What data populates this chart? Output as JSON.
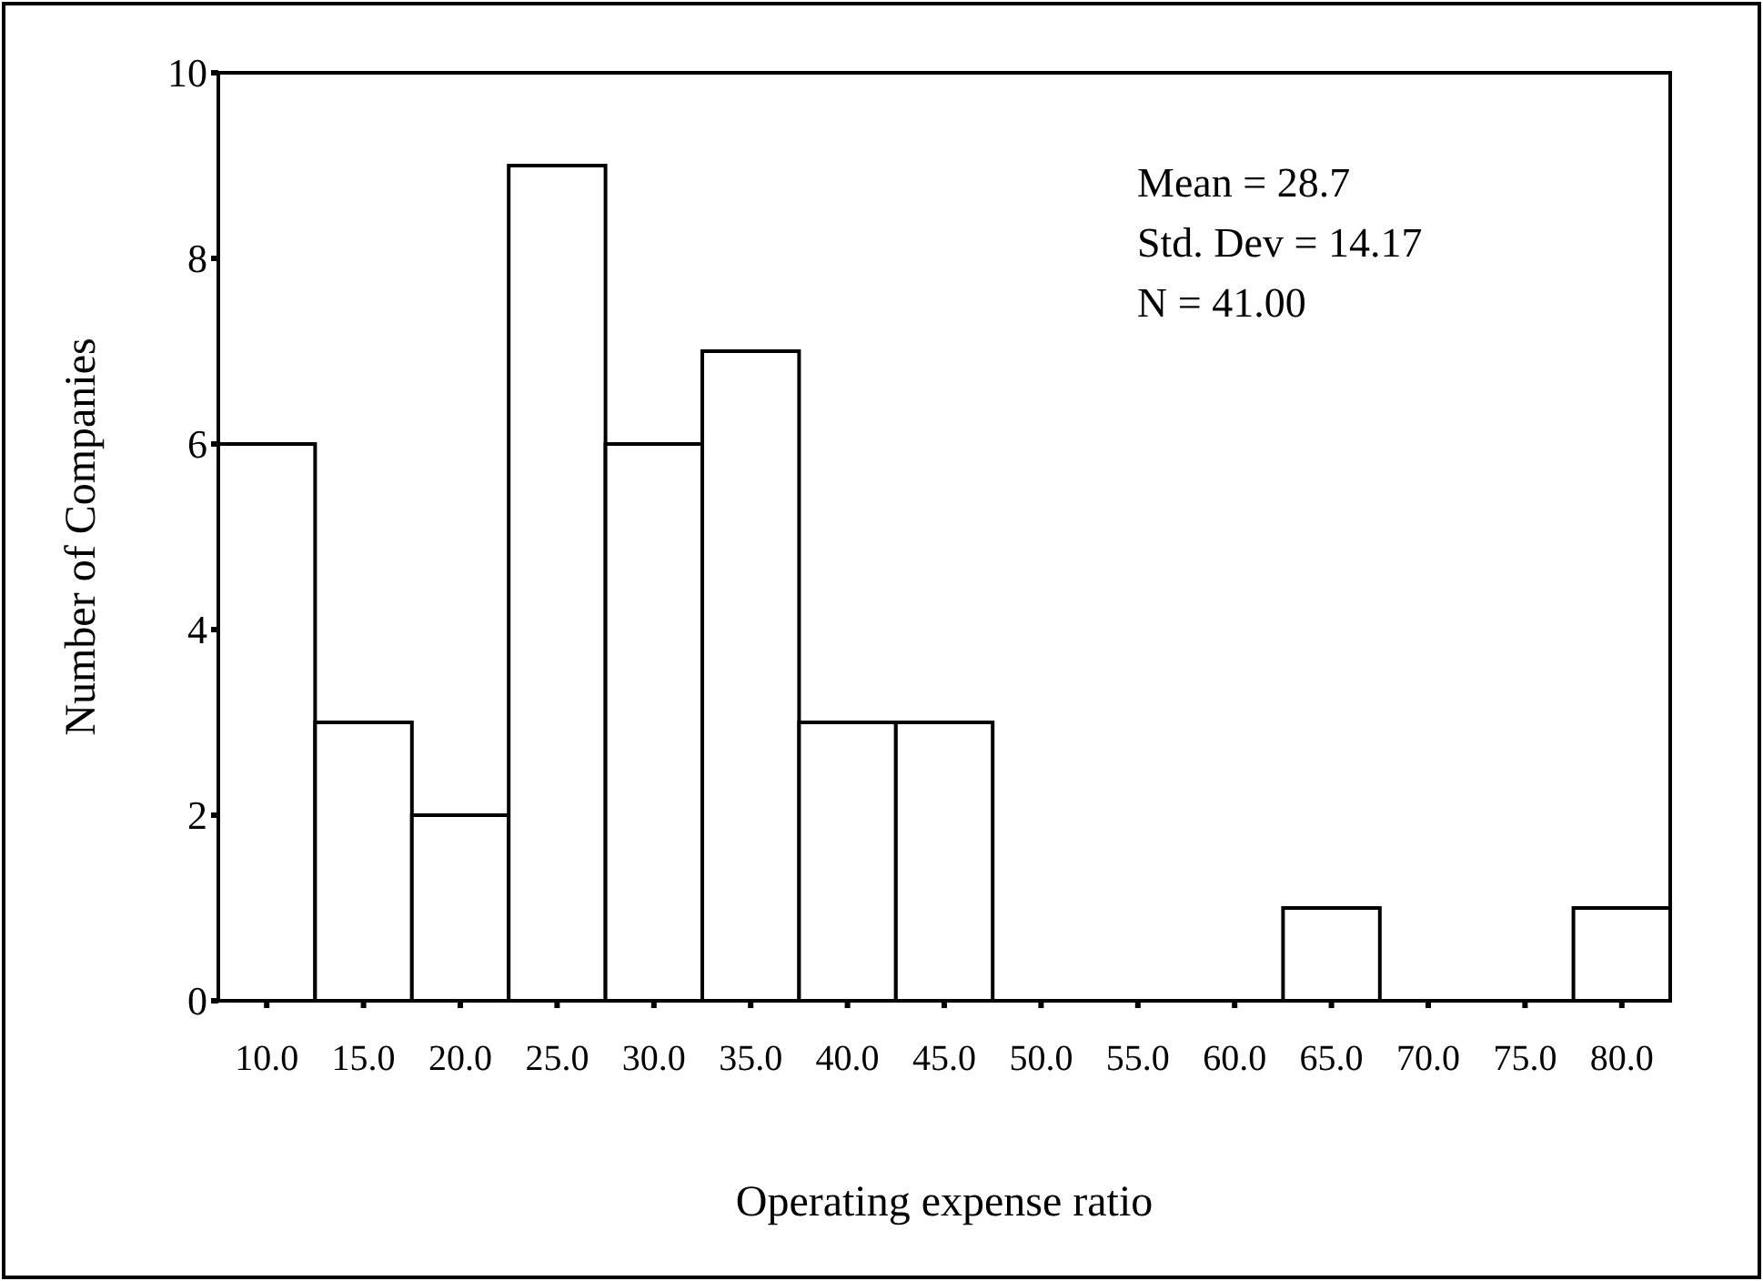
{
  "chart_data": {
    "type": "histogram",
    "xlabel": "Operating expense ratio",
    "ylabel": "Number of Companies",
    "bins": [
      7.5,
      12.5,
      17.5,
      22.5,
      27.5,
      32.5,
      37.5,
      42.5,
      47.5,
      52.5,
      57.5,
      62.5,
      67.5,
      72.5,
      77.5,
      82.5
    ],
    "values": [
      6,
      3,
      2,
      9,
      6,
      7,
      3,
      3,
      0,
      0,
      0,
      1,
      0,
      0,
      1
    ],
    "color": "#ffffff",
    "xlim": [
      7.5,
      82.5
    ],
    "xticks": [
      {
        "value": 10,
        "label": "10.0"
      },
      {
        "value": 15,
        "label": "15.0"
      },
      {
        "value": 20,
        "label": "20.0"
      },
      {
        "value": 25,
        "label": "25.0"
      },
      {
        "value": 30,
        "label": "30.0"
      },
      {
        "value": 35,
        "label": "35.0"
      },
      {
        "value": 40,
        "label": "40.0"
      },
      {
        "value": 45,
        "label": "45.0"
      },
      {
        "value": 50,
        "label": "50.0"
      },
      {
        "value": 55,
        "label": "55.0"
      },
      {
        "value": 60,
        "label": "60.0"
      },
      {
        "value": 65,
        "label": "65.0"
      },
      {
        "value": 70,
        "label": "70.0"
      },
      {
        "value": 75,
        "label": "75.0"
      },
      {
        "value": 80,
        "label": "80.0"
      }
    ],
    "ylim": [
      0,
      10
    ],
    "yticks": [
      0,
      2,
      4,
      6,
      8,
      10
    ],
    "annotations": [
      "Mean = 28.7",
      "Std. Dev = 14.17",
      "N = 41.00"
    ]
  }
}
